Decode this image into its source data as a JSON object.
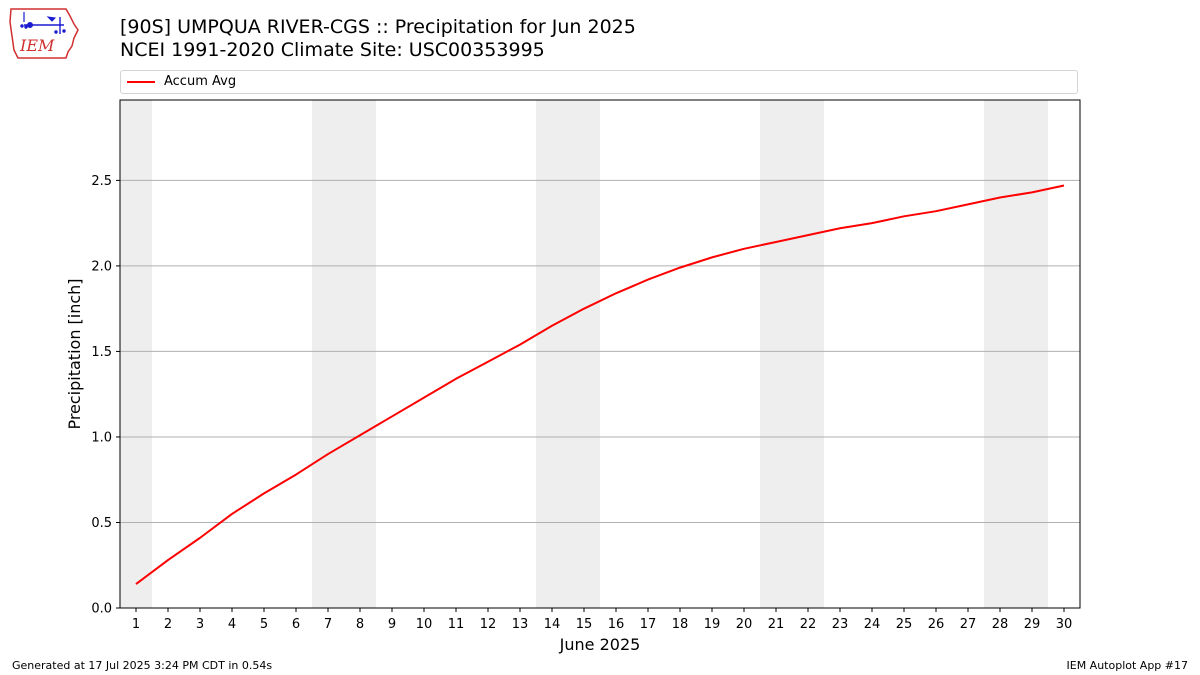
{
  "header": {
    "title_line1": "[90S] UMPQUA RIVER-CGS :: Precipitation for Jun 2025",
    "title_line2": "NCEI 1991-2020 Climate Site: USC00353995",
    "logo_text": "IEM"
  },
  "footer": {
    "generated": "Generated at 17 Jul 2025 3:24 PM CDT in 0.54s",
    "app": "IEM Autoplot App #17"
  },
  "colors": {
    "series": "#ff0000",
    "weekend_band": "#eeeeee",
    "grid": "#b0b0b0",
    "logo_red": "#d03030",
    "logo_blue": "#1a1ad0"
  },
  "chart_data": {
    "type": "line",
    "xlabel": "June 2025",
    "ylabel": "Precipitation [inch]",
    "xlim": [
      0.5,
      30.5
    ],
    "ylim": [
      0,
      2.97
    ],
    "yticks": [
      "0.0",
      "0.5",
      "1.0",
      "1.5",
      "2.0",
      "2.5"
    ],
    "xticks": [
      "1",
      "2",
      "3",
      "4",
      "5",
      "6",
      "7",
      "8",
      "9",
      "10",
      "11",
      "12",
      "13",
      "14",
      "15",
      "16",
      "17",
      "18",
      "19",
      "20",
      "21",
      "22",
      "23",
      "24",
      "25",
      "26",
      "27",
      "28",
      "29",
      "30"
    ],
    "grid": "y-major",
    "legend_placement": "top, above plot",
    "weekend_days": [
      1,
      7,
      8,
      14,
      15,
      21,
      22,
      28,
      29
    ],
    "x": [
      1,
      2,
      3,
      4,
      5,
      6,
      7,
      8,
      9,
      10,
      11,
      12,
      13,
      14,
      15,
      16,
      17,
      18,
      19,
      20,
      21,
      22,
      23,
      24,
      25,
      26,
      27,
      28,
      29,
      30
    ],
    "series": [
      {
        "name": "Accum Avg",
        "values": [
          0.14,
          0.28,
          0.41,
          0.55,
          0.67,
          0.78,
          0.9,
          1.01,
          1.12,
          1.23,
          1.34,
          1.44,
          1.54,
          1.65,
          1.75,
          1.84,
          1.92,
          1.99,
          2.05,
          2.1,
          2.14,
          2.18,
          2.22,
          2.25,
          2.29,
          2.32,
          2.36,
          2.4,
          2.43,
          2.47
        ]
      }
    ]
  }
}
